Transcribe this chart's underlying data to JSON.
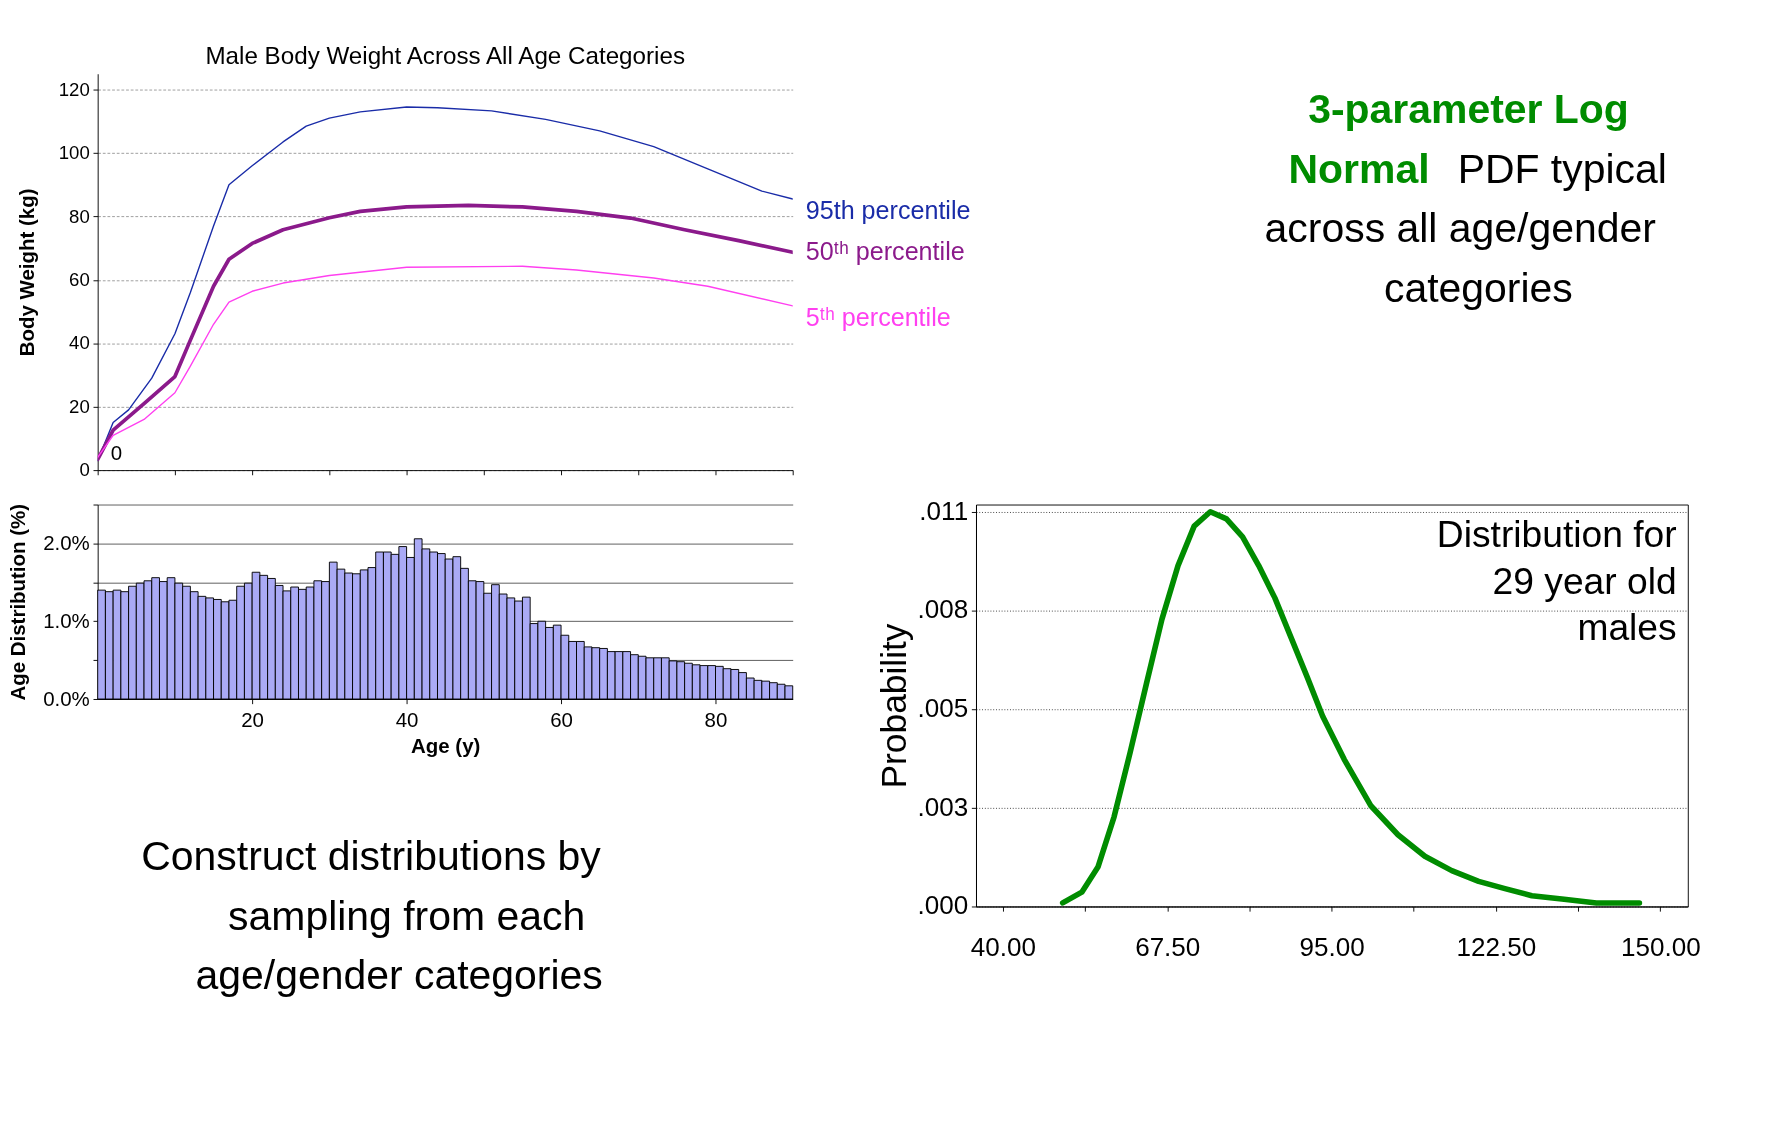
{
  "chart_data": [
    {
      "type": "line",
      "title": "Male Body Weight Across All Age Categories",
      "ylabel": "Body Weight (kg)",
      "xlim": [
        0,
        90
      ],
      "ylim": [
        0,
        125
      ],
      "xticks": [
        0,
        10,
        20,
        30,
        40,
        50,
        60,
        70,
        80,
        90
      ],
      "yticks": [
        0,
        20,
        40,
        60,
        80,
        100,
        120
      ],
      "tick_labels": "y",
      "grid": "y",
      "series": [
        {
          "name": "95th percentile",
          "color": "#1a2ca8",
          "x": [
            0,
            2,
            4,
            7,
            10,
            12,
            15,
            17,
            20,
            24,
            27,
            30,
            34,
            40,
            44,
            51,
            58,
            65,
            72,
            79,
            86,
            90
          ],
          "values": [
            3,
            15,
            19,
            29,
            43,
            56,
            77,
            90,
            96,
            103.5,
            108.5,
            111,
            113,
            114.5,
            114.3,
            113.3,
            110.6,
            107,
            102,
            95,
            88,
            85.5
          ]
        },
        {
          "name": "50ᵗʰ percentile",
          "color": "#8b1a8b",
          "x": [
            0,
            2,
            6,
            10,
            12,
            15,
            17,
            20,
            24,
            30,
            34,
            40,
            48,
            55,
            62,
            69,
            76,
            83,
            90
          ],
          "values": [
            3.4,
            12.6,
            21,
            29.5,
            41,
            58,
            66.5,
            71.5,
            75.8,
            79.6,
            81.6,
            83,
            83.5,
            83,
            81.6,
            79.5,
            75.8,
            72.4,
            68.7
          ]
        },
        {
          "name": "5ᵗʰ percentile",
          "color": "#ff40f0",
          "x": [
            0,
            2,
            6,
            10,
            12,
            15,
            17,
            20,
            24,
            30,
            40,
            55,
            62,
            72,
            79,
            90
          ],
          "values": [
            4,
            11,
            16,
            24.4,
            32.8,
            46,
            53,
            56.4,
            59,
            61.4,
            64,
            64.3,
            63.1,
            60.6,
            58,
            51.8
          ]
        }
      ],
      "annotations": [
        "0"
      ]
    },
    {
      "type": "other",
      "annotations": [
        "3-parameter Log Normal",
        "PDF typical across all age/gender categories"
      ],
      "colors": [
        "#008c00",
        "#000000"
      ]
    },
    {
      "type": "histogram",
      "xlabel": "Age (y)",
      "ylabel": "Age Distribution (%)",
      "color": "#aaaaf5",
      "xlim": [
        0,
        90
      ],
      "ylim": [
        0,
        2.5
      ],
      "xticks": [
        20,
        40,
        60,
        80
      ],
      "yticks": [
        {
          "value": 0,
          "label": "0.0%"
        },
        {
          "value": 0.5,
          "label": null
        },
        {
          "value": 1,
          "label": "1.0%"
        },
        {
          "value": 1.5,
          "label": null
        },
        {
          "value": 2,
          "label": "2.0%"
        },
        {
          "value": 2.5,
          "label": null
        }
      ],
      "grid": "y",
      "bins": [
        0,
        1,
        2,
        3,
        4,
        5,
        6,
        7,
        8,
        9,
        10,
        11,
        12,
        13,
        14,
        15,
        16,
        17,
        18,
        19,
        20,
        21,
        22,
        23,
        24,
        25,
        26,
        27,
        28,
        29,
        30,
        31,
        32,
        33,
        34,
        35,
        36,
        37,
        38,
        39,
        40,
        41,
        42,
        43,
        44,
        45,
        46,
        47,
        48,
        49,
        50,
        51,
        52,
        53,
        54,
        55,
        56,
        57,
        58,
        59,
        60,
        61,
        62,
        63,
        64,
        65,
        66,
        67,
        68,
        69,
        70,
        71,
        72,
        73,
        74,
        75,
        76,
        77,
        78,
        79,
        80,
        81,
        82,
        83,
        84,
        85,
        86,
        87,
        88,
        89,
        90
      ],
      "values": [
        1.4,
        1.38,
        1.4,
        1.38,
        1.45,
        1.49,
        1.52,
        1.56,
        1.51,
        1.56,
        1.49,
        1.45,
        1.38,
        1.32,
        1.3,
        1.28,
        1.25,
        1.27,
        1.45,
        1.49,
        1.63,
        1.59,
        1.55,
        1.46,
        1.39,
        1.44,
        1.41,
        1.44,
        1.52,
        1.51,
        1.76,
        1.67,
        1.62,
        1.61,
        1.66,
        1.69,
        1.89,
        1.89,
        1.86,
        1.96,
        1.82,
        2.06,
        1.93,
        1.89,
        1.87,
        1.8,
        1.83,
        1.68,
        1.52,
        1.51,
        1.36,
        1.47,
        1.35,
        1.3,
        1.26,
        1.31,
        0.97,
        1.0,
        0.92,
        0.95,
        0.82,
        0.74,
        0.74,
        0.67,
        0.66,
        0.65,
        0.61,
        0.61,
        0.61,
        0.57,
        0.55,
        0.53,
        0.53,
        0.53,
        0.49,
        0.48,
        0.46,
        0.44,
        0.43,
        0.43,
        0.42,
        0.39,
        0.38,
        0.34,
        0.27,
        0.24,
        0.23,
        0.21,
        0.19,
        0.17
      ]
    },
    {
      "type": "line",
      "ylabel": "Probability",
      "xlim": [
        35.5,
        154.6
      ],
      "ylim": [
        0,
        0.0112
      ],
      "xticks": [
        {
          "value": 40,
          "label": "40.00"
        },
        {
          "value": 53.75,
          "label": null
        },
        {
          "value": 67.5,
          "label": "67.50"
        },
        {
          "value": 81.25,
          "label": null
        },
        {
          "value": 95,
          "label": "95.00"
        },
        {
          "value": 108.75,
          "label": null
        },
        {
          "value": 122.5,
          "label": "122.50"
        },
        {
          "value": 136.25,
          "label": null
        },
        {
          "value": 150,
          "label": "150.00"
        }
      ],
      "yticks": [
        {
          "value": 0,
          "label": ".000"
        },
        {
          "value": 0.00275,
          "label": ".003"
        },
        {
          "value": 0.0055,
          "label": ".005"
        },
        {
          "value": 0.00825,
          "label": ".008"
        },
        {
          "value": 0.011,
          "label": ".011"
        }
      ],
      "grid": "y",
      "series": [
        {
          "color": "#008c00",
          "x": [
            50.0,
            53.2,
            55.9,
            58.6,
            61.3,
            64.0,
            66.6,
            69.3,
            72.0,
            74.7,
            77.4,
            80.1,
            82.8,
            85.5,
            88.2,
            90.9,
            93.5,
            97.1,
            101.6,
            106.1,
            110.6,
            115.1,
            119.6,
            124.0,
            128.5,
            133.9,
            139.3,
            146.5
          ],
          "values": [
            0.0001,
            0.0004,
            0.0011,
            0.0025,
            0.0043,
            0.0062,
            0.008,
            0.0095,
            0.0106,
            0.011,
            0.0108,
            0.0103,
            0.0095,
            0.0086,
            0.0075,
            0.0064,
            0.0053,
            0.0041,
            0.0028,
            0.002,
            0.0014,
            0.001,
            0.0007,
            0.0005,
            0.0003,
            0.0002,
            0.0001,
            0.0001
          ]
        }
      ],
      "annotations": [
        "Distribution for 29 year old males"
      ]
    },
    {
      "type": "other",
      "annotations": [
        "Construct distributions by sampling from each age/gender categories"
      ]
    }
  ]
}
